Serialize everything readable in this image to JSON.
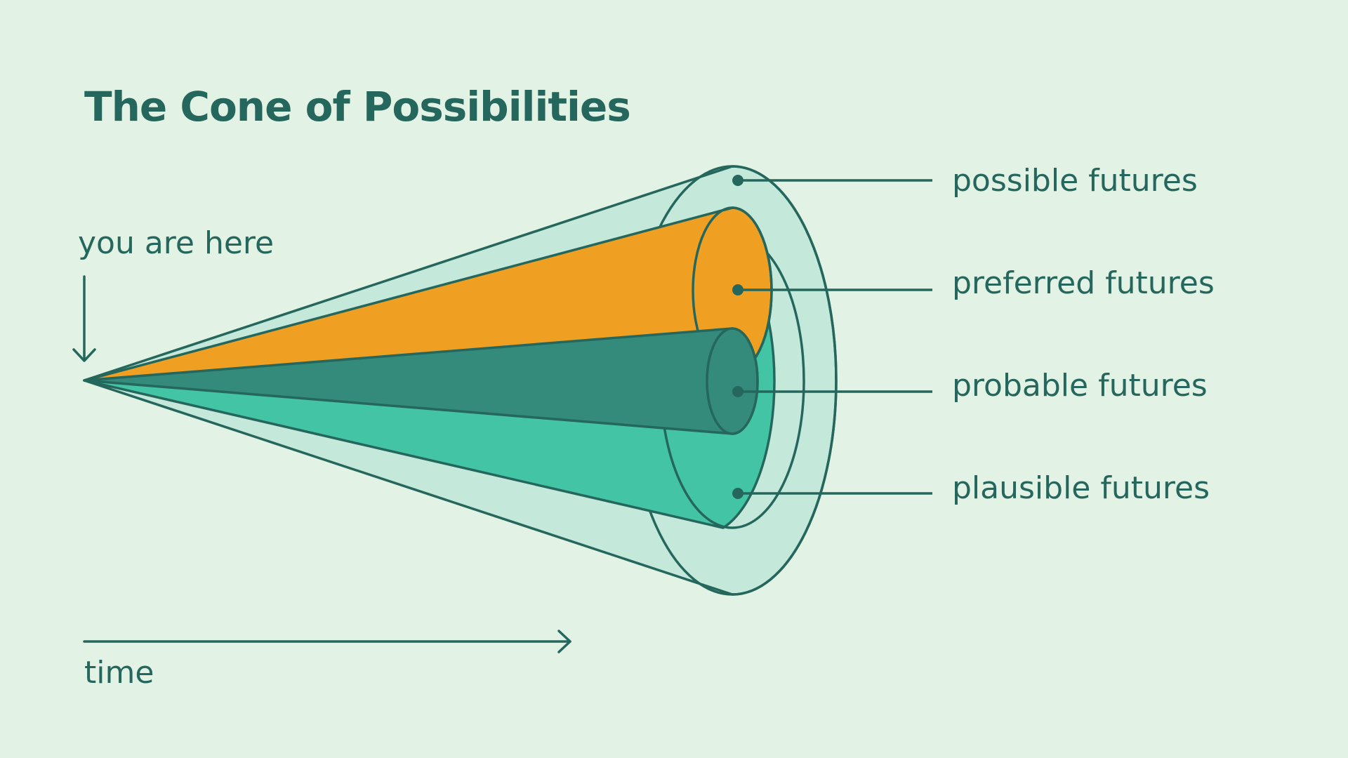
{
  "title": "The Cone of Possibilities",
  "marker": {
    "label": "you are here"
  },
  "axis": {
    "label": "time"
  },
  "futures": [
    {
      "id": "possible",
      "label": "possible futures"
    },
    {
      "id": "preferred",
      "label": "preferred futures"
    },
    {
      "id": "probable",
      "label": "probable futures"
    },
    {
      "id": "plausible",
      "label": "plausible futures"
    }
  ],
  "colors": {
    "background": "#e2f2e5",
    "stroke": "#25675c",
    "possible_fill": "#c4e8da",
    "plausible_fill": "#43c4a5",
    "preferred_fill": "#efa023",
    "probable_fill": "#348a7b",
    "text": "#25675c"
  }
}
